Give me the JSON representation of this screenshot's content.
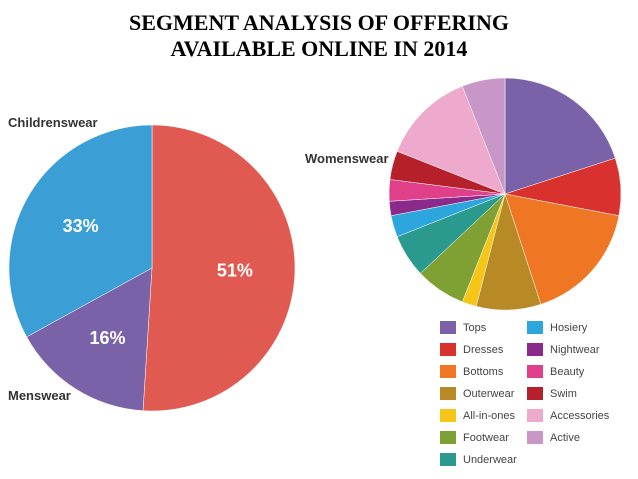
{
  "chart_data": [
    {
      "type": "pie",
      "title": "SEGMENT ANALYSIS OF OFFERING AVAILABLE ONLINE IN 2014",
      "categories": [
        "Womenswear",
        "Menswear",
        "Childrenswear"
      ],
      "values": [
        51,
        16,
        33
      ],
      "value_labels": [
        "51%",
        "16%",
        "33%"
      ],
      "colors": [
        "#e05a52",
        "#7a62a8",
        "#3b9fd6"
      ]
    },
    {
      "type": "pie",
      "categories": [
        "Tops",
        "Dresses",
        "Bottoms",
        "Outerwear",
        "All-in-ones",
        "Footwear",
        "Underwear",
        "Hosiery",
        "Nightwear",
        "Beauty",
        "Swim",
        "Accessories",
        "Active"
      ],
      "values": [
        20,
        8,
        17,
        9,
        2,
        7,
        6,
        3,
        2,
        3,
        4,
        13,
        6
      ],
      "colors": [
        "#7a62a8",
        "#d9322e",
        "#ef7622",
        "#b88a26",
        "#f5c518",
        "#7fa032",
        "#2a9a8e",
        "#2ca6dc",
        "#8c2a8c",
        "#e0408a",
        "#b5202a",
        "#eeaacc",
        "#c996c8"
      ]
    }
  ]
}
